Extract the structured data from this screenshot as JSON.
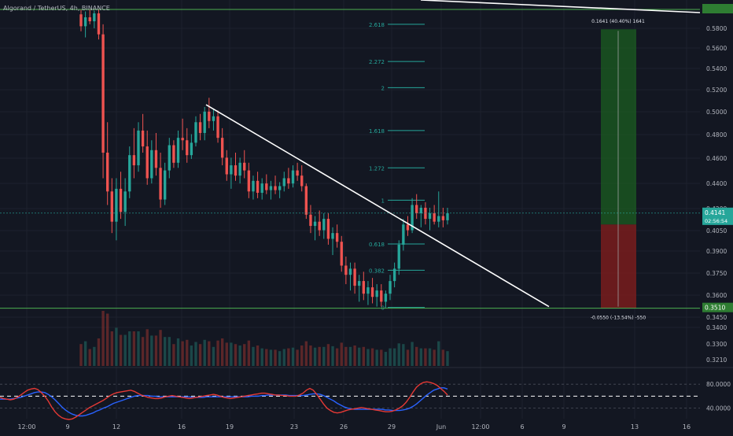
{
  "header": {
    "title": "Algorand / TetherUS, 4h, BINANCE"
  },
  "theme": {
    "background": "#131722",
    "up_color": "#26a69a",
    "down_color": "#ef5350",
    "grid_color": "#1e222d",
    "text_color": "#b2b5be",
    "fib_color": "#26a69a",
    "trendline_color": "#ffffff",
    "rsi_color": "#e53935",
    "rsi_signal_color": "#2962ff",
    "target_fill": "#1b5e20",
    "stop_fill": "#7f1d1d"
  },
  "chart_data": {
    "type": "candlestick",
    "y_axis": {
      "unit": "USDT",
      "ticks": [
        "0.5800",
        "0.5600",
        "0.5400",
        "0.5200",
        "0.5000",
        "0.4800",
        "0.4600",
        "0.4400",
        "0.4200",
        "0.4050",
        "0.3900",
        "0.3750",
        "0.3600",
        "0.3450",
        "0.3400",
        "0.3300",
        "0.3210"
      ],
      "tick_values": [
        0.58,
        0.56,
        0.54,
        0.52,
        0.5,
        0.48,
        0.46,
        0.44,
        0.42,
        0.405,
        0.39,
        0.375,
        0.36,
        0.345,
        0.34,
        0.33,
        0.321
      ],
      "scale": "log"
    },
    "x_axis": {
      "ticks": [
        "12:00",
        "9",
        "12",
        "16",
        "19",
        "23",
        "26",
        "29",
        "Jun",
        "12:00",
        "6",
        "9",
        "13",
        "16"
      ]
    },
    "price_labels": {
      "current": "0.4141",
      "countdown": "02:56:54",
      "support": "0.3510"
    },
    "fib_levels": [
      {
        "label": "2.618",
        "price": 0.575
      },
      {
        "label": "2.272",
        "price": 0.539
      },
      {
        "label": "2",
        "price": 0.515
      },
      {
        "label": "1.618",
        "price": 0.478
      },
      {
        "label": "1.272",
        "price": 0.448
      },
      {
        "label": "1",
        "price": 0.4235
      },
      {
        "label": "0.618",
        "price": 0.3925
      },
      {
        "label": "0.382",
        "price": 0.375
      },
      {
        "label": "0",
        "price": 0.3515
      }
    ],
    "position": {
      "target_label": "0.1641 (40.40%) 1641",
      "stop_label": "-0.0550 (-13.54%) -550",
      "entry": 0.406,
      "target": 0.57,
      "stop": 0.351
    },
    "rsi": {
      "levels": [
        "80.0000",
        "40.0000"
      ],
      "level_values": [
        80,
        40
      ],
      "rsi_values": [
        58,
        56,
        55,
        54,
        55,
        58,
        62,
        66,
        70,
        72,
        73,
        71,
        66,
        60,
        52,
        42,
        34,
        28,
        24,
        22,
        21,
        22,
        25,
        29,
        33,
        37,
        41,
        44,
        47,
        50,
        53,
        57,
        61,
        64,
        66,
        67,
        68,
        69,
        70,
        68,
        65,
        62,
        60,
        58,
        57,
        56,
        56,
        57,
        59,
        60,
        61,
        60,
        59,
        58,
        57,
        56,
        57,
        58,
        59,
        60,
        61,
        62,
        63,
        62,
        60,
        58,
        57,
        56,
        57,
        58,
        59,
        60,
        61,
        62,
        63,
        64,
        65,
        65,
        64,
        63,
        62,
        62,
        61,
        61,
        60,
        60,
        60,
        62,
        65,
        70,
        73,
        70,
        63,
        55,
        47,
        40,
        36,
        33,
        32,
        33,
        35,
        37,
        38,
        39,
        40,
        41,
        40,
        39,
        38,
        37,
        36,
        35,
        34,
        34,
        35,
        37,
        40,
        44,
        50,
        58,
        67,
        75,
        80,
        83,
        84,
        83,
        81,
        78,
        73,
        68,
        62
      ],
      "signal_values": [
        55,
        55,
        55,
        55,
        56,
        57,
        58,
        60,
        62,
        64,
        66,
        67,
        67,
        66,
        63,
        59,
        54,
        48,
        42,
        37,
        33,
        30,
        28,
        27,
        27,
        28,
        30,
        32,
        35,
        37,
        40,
        42,
        45,
        48,
        50,
        52,
        54,
        56,
        58,
        60,
        61,
        61,
        61,
        61,
        60,
        60,
        59,
        59,
        59,
        59,
        59,
        59,
        59,
        59,
        59,
        59,
        58,
        58,
        58,
        58,
        59,
        59,
        59,
        59,
        59,
        59,
        59,
        59,
        59,
        59,
        59,
        59,
        59,
        60,
        60,
        60,
        61,
        61,
        62,
        62,
        62,
        62,
        62,
        62,
        61,
        61,
        61,
        61,
        61,
        62,
        63,
        64,
        64,
        63,
        61,
        58,
        55,
        52,
        48,
        45,
        42,
        40,
        39,
        38,
        38,
        38,
        38,
        38,
        38,
        38,
        38,
        38,
        37,
        37,
        36,
        36,
        36,
        37,
        38,
        40,
        43,
        47,
        52,
        57,
        62,
        66,
        70,
        72,
        74,
        74,
        72
      ]
    },
    "candles": [
      [
        0.585,
        0.59,
        0.568,
        0.573
      ],
      [
        0.573,
        0.588,
        0.562,
        0.582
      ],
      [
        0.582,
        0.59,
        0.575,
        0.578
      ],
      [
        0.578,
        0.589,
        0.571,
        0.586
      ],
      [
        0.586,
        0.59,
        0.56,
        0.565
      ],
      [
        0.565,
        0.575,
        0.44,
        0.46
      ],
      [
        0.46,
        0.485,
        0.42,
        0.43
      ],
      [
        0.43,
        0.44,
        0.4,
        0.408
      ],
      [
        0.408,
        0.44,
        0.395,
        0.432
      ],
      [
        0.432,
        0.445,
        0.41,
        0.415
      ],
      [
        0.415,
        0.44,
        0.405,
        0.43
      ],
      [
        0.43,
        0.465,
        0.425,
        0.458
      ],
      [
        0.458,
        0.48,
        0.44,
        0.45
      ],
      [
        0.45,
        0.485,
        0.445,
        0.478
      ],
      [
        0.478,
        0.492,
        0.46,
        0.465
      ],
      [
        0.465,
        0.478,
        0.435,
        0.44
      ],
      [
        0.44,
        0.47,
        0.436,
        0.462
      ],
      [
        0.462,
        0.476,
        0.442,
        0.448
      ],
      [
        0.448,
        0.46,
        0.418,
        0.424
      ],
      [
        0.424,
        0.452,
        0.42,
        0.446
      ],
      [
        0.446,
        0.472,
        0.44,
        0.466
      ],
      [
        0.466,
        0.47,
        0.448,
        0.452
      ],
      [
        0.452,
        0.478,
        0.448,
        0.472
      ],
      [
        0.472,
        0.488,
        0.462,
        0.47
      ],
      [
        0.47,
        0.48,
        0.452,
        0.458
      ],
      [
        0.458,
        0.475,
        0.455,
        0.468
      ],
      [
        0.468,
        0.49,
        0.465,
        0.485
      ],
      [
        0.485,
        0.492,
        0.47,
        0.476
      ],
      [
        0.476,
        0.498,
        0.47,
        0.494
      ],
      [
        0.494,
        0.506,
        0.48,
        0.486
      ],
      [
        0.486,
        0.496,
        0.478,
        0.49
      ],
      [
        0.49,
        0.495,
        0.468,
        0.472
      ],
      [
        0.472,
        0.48,
        0.45,
        0.456
      ],
      [
        0.456,
        0.462,
        0.438,
        0.443
      ],
      [
        0.443,
        0.456,
        0.432,
        0.45
      ],
      [
        0.45,
        0.46,
        0.438,
        0.442
      ],
      [
        0.442,
        0.456,
        0.436,
        0.452
      ],
      [
        0.452,
        0.462,
        0.44,
        0.446
      ],
      [
        0.446,
        0.452,
        0.425,
        0.43
      ],
      [
        0.43,
        0.442,
        0.424,
        0.438
      ],
      [
        0.438,
        0.445,
        0.425,
        0.429
      ],
      [
        0.429,
        0.44,
        0.424,
        0.436
      ],
      [
        0.436,
        0.443,
        0.428,
        0.431
      ],
      [
        0.431,
        0.438,
        0.424,
        0.434
      ],
      [
        0.434,
        0.442,
        0.428,
        0.431
      ],
      [
        0.431,
        0.437,
        0.425,
        0.434
      ],
      [
        0.434,
        0.445,
        0.43,
        0.44
      ],
      [
        0.44,
        0.448,
        0.432,
        0.436
      ],
      [
        0.436,
        0.45,
        0.433,
        0.446
      ],
      [
        0.446,
        0.452,
        0.438,
        0.442
      ],
      [
        0.442,
        0.45,
        0.43,
        0.434
      ],
      [
        0.434,
        0.436,
        0.41,
        0.413
      ],
      [
        0.413,
        0.42,
        0.4,
        0.405
      ],
      [
        0.405,
        0.412,
        0.395,
        0.408
      ],
      [
        0.408,
        0.416,
        0.398,
        0.402
      ],
      [
        0.402,
        0.414,
        0.396,
        0.41
      ],
      [
        0.41,
        0.414,
        0.392,
        0.396
      ],
      [
        0.396,
        0.404,
        0.385,
        0.4
      ],
      [
        0.4,
        0.406,
        0.39,
        0.394
      ],
      [
        0.394,
        0.398,
        0.374,
        0.378
      ],
      [
        0.378,
        0.384,
        0.366,
        0.372
      ],
      [
        0.372,
        0.38,
        0.362,
        0.376
      ],
      [
        0.376,
        0.38,
        0.36,
        0.365
      ],
      [
        0.365,
        0.372,
        0.355,
        0.368
      ],
      [
        0.368,
        0.374,
        0.356,
        0.36
      ],
      [
        0.36,
        0.368,
        0.353,
        0.364
      ],
      [
        0.364,
        0.37,
        0.354,
        0.358
      ],
      [
        0.358,
        0.366,
        0.352,
        0.362
      ],
      [
        0.362,
        0.366,
        0.352,
        0.355
      ],
      [
        0.355,
        0.362,
        0.351,
        0.36
      ],
      [
        0.36,
        0.372,
        0.356,
        0.368
      ],
      [
        0.368,
        0.38,
        0.364,
        0.376
      ],
      [
        0.376,
        0.395,
        0.372,
        0.392
      ],
      [
        0.392,
        0.41,
        0.388,
        0.406
      ],
      [
        0.406,
        0.412,
        0.398,
        0.402
      ],
      [
        0.402,
        0.425,
        0.4,
        0.42
      ],
      [
        0.42,
        0.428,
        0.41,
        0.414
      ],
      [
        0.414,
        0.42,
        0.404,
        0.418
      ],
      [
        0.418,
        0.422,
        0.406,
        0.41
      ],
      [
        0.41,
        0.418,
        0.402,
        0.414
      ],
      [
        0.414,
        0.42,
        0.406,
        0.408
      ],
      [
        0.408,
        0.43,
        0.404,
        0.412
      ],
      [
        0.412,
        0.418,
        0.404,
        0.409
      ],
      [
        0.409,
        0.418,
        0.406,
        0.414
      ]
    ]
  }
}
